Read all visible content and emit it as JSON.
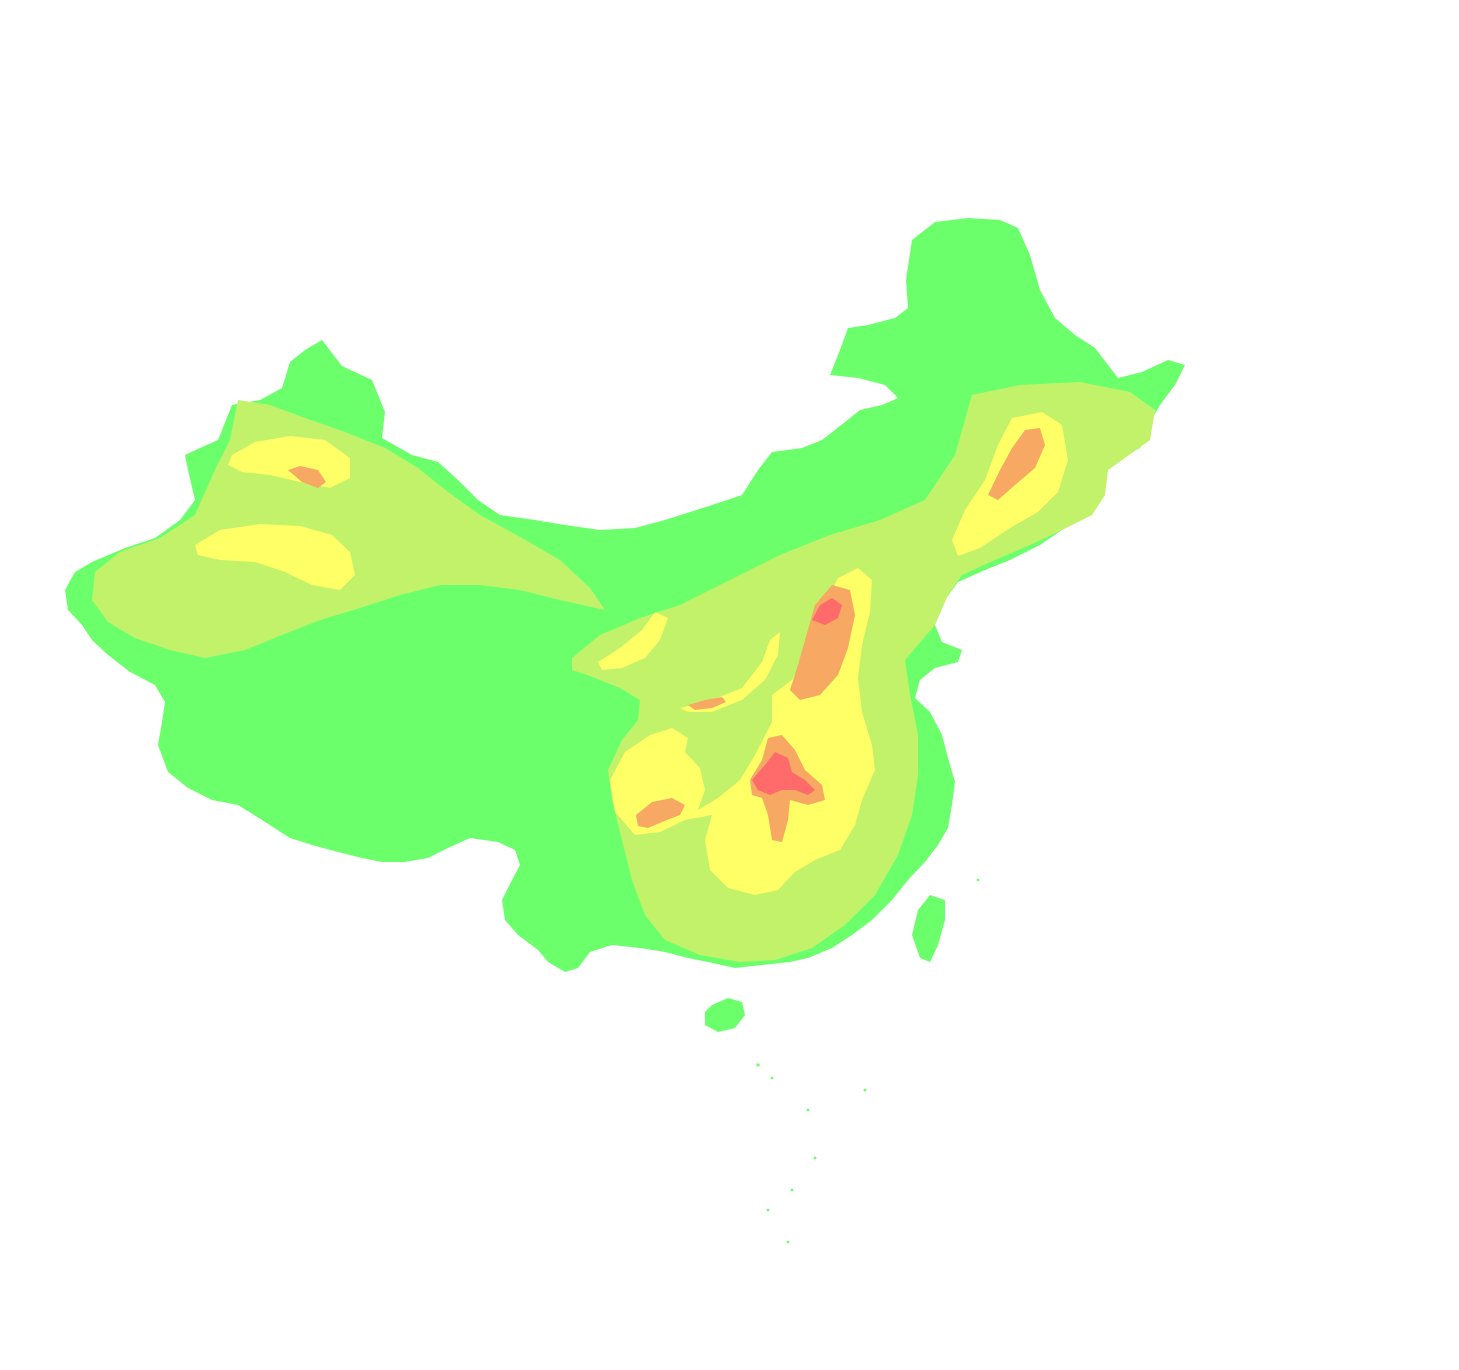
{
  "map": {
    "region": "China",
    "type": "heatmap-choropleth",
    "legend_shown": false,
    "labels_shown": false,
    "background_color": "#ffffff",
    "intensity_levels": [
      {
        "level": 1,
        "color": "#6cff6c"
      },
      {
        "level": 2,
        "color": "#c2f26a"
      },
      {
        "level": 3,
        "color": "#ffff66"
      },
      {
        "level": 4,
        "color": "#f7a862"
      },
      {
        "level": 5,
        "color": "#ff6b6b"
      }
    ],
    "islands": [
      "taiwan-island",
      "hainan-island",
      "south-china-sea-islands"
    ],
    "water_bodies": [
      "bohai-sea"
    ]
  }
}
